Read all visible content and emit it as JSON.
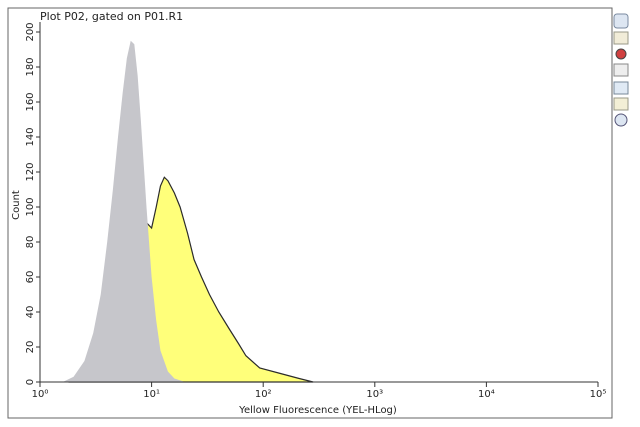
{
  "chart_data": {
    "type": "area",
    "title": "Plot P02, gated on P01.R1",
    "xlabel": "Yellow Fluorescence (YEL-HLog)",
    "ylabel": "Count",
    "xscale": "log",
    "xlim": [
      1,
      100000
    ],
    "ylim": [
      0,
      200
    ],
    "xticks": [
      {
        "value": 1,
        "label": "10⁰"
      },
      {
        "value": 10,
        "label": "10¹"
      },
      {
        "value": 100,
        "label": "10²"
      },
      {
        "value": 1000,
        "label": "10³"
      },
      {
        "value": 10000,
        "label": "10⁴"
      },
      {
        "value": 100000,
        "label": "10⁵"
      }
    ],
    "yticks": [
      0,
      20,
      40,
      60,
      80,
      100,
      120,
      140,
      160,
      180,
      200
    ],
    "series": [
      {
        "color": "#c6c6cb",
        "x": [
          1.6,
          2,
          2.5,
          3,
          3.5,
          4,
          4.5,
          5,
          5.5,
          6,
          6.5,
          7,
          7.5,
          8,
          9,
          10,
          11,
          12,
          14,
          16,
          20
        ],
        "values": [
          0,
          3,
          12,
          28,
          50,
          80,
          110,
          140,
          165,
          185,
          195,
          193,
          175,
          150,
          100,
          60,
          35,
          18,
          6,
          2,
          0
        ]
      },
      {
        "color": "#ffff7a",
        "edgecolor": "#2b2b2b",
        "x": [
          1.8,
          2.5,
          3,
          4,
          4.7,
          5.5,
          6.4,
          7.5,
          8.7,
          10,
          11,
          12,
          13,
          14,
          16,
          18,
          21,
          24,
          28,
          33,
          40,
          50,
          60,
          70,
          93,
          140,
          210,
          280
        ],
        "values": [
          0,
          2,
          4,
          10,
          35,
          55,
          72,
          80,
          92,
          88,
          100,
          112,
          117,
          115,
          108,
          100,
          85,
          70,
          60,
          50,
          40,
          30,
          22,
          15,
          8,
          5,
          2,
          0
        ]
      }
    ]
  }
}
